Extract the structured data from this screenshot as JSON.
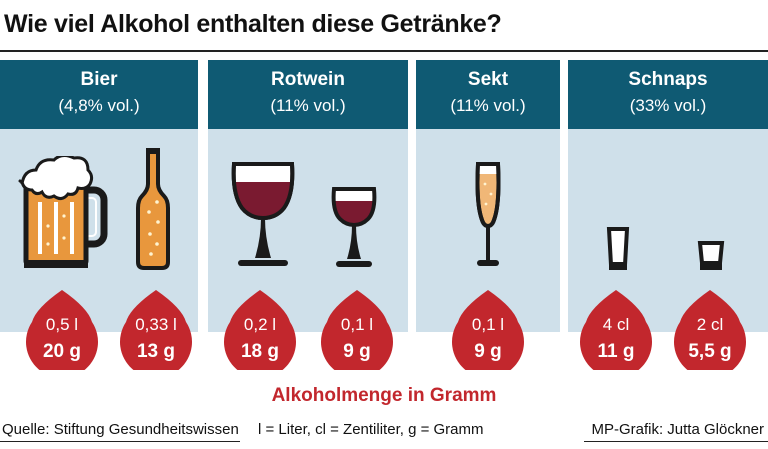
{
  "title": "Wie viel Alkohol enthalten diese Getränke?",
  "colors": {
    "header": "#0f5a73",
    "panel": "#cfe0ea",
    "drop": "#c2272d",
    "beer": "#e8973d",
    "red_wine": "#7a1a30"
  },
  "groups": [
    {
      "name": "Bier",
      "abv": "(4,8% vol.)",
      "items": [
        {
          "icon": "beer-mug-icon",
          "volume": "0,5 l",
          "grams": "20 g"
        },
        {
          "icon": "beer-bottle-icon",
          "volume": "0,33 l",
          "grams": "13 g"
        }
      ]
    },
    {
      "name": "Rotwein",
      "abv": "(11% vol.)",
      "items": [
        {
          "icon": "red-wine-glass-large-icon",
          "volume": "0,2 l",
          "grams": "18 g"
        },
        {
          "icon": "red-wine-glass-small-icon",
          "volume": "0,1 l",
          "grams": "9 g"
        }
      ]
    },
    {
      "name": "Sekt",
      "abv": "(11% vol.)",
      "items": [
        {
          "icon": "champagne-flute-icon",
          "volume": "0,1 l",
          "grams": "9 g"
        }
      ]
    },
    {
      "name": "Schnaps",
      "abv": "(33% vol.)",
      "items": [
        {
          "icon": "shot-glass-tall-icon",
          "volume": "4 cl",
          "grams": "11 g"
        },
        {
          "icon": "shot-glass-small-icon",
          "volume": "2 cl",
          "grams": "5,5 g"
        }
      ]
    }
  ],
  "subtitle": "Alkoholmenge in Gramm",
  "footer": {
    "source": "Quelle: Stiftung Gesundheitswissen",
    "legend": "l = Liter, cl = Zentiliter, g = Gramm",
    "credit": "MP-Grafik: Jutta Glöckner"
  }
}
